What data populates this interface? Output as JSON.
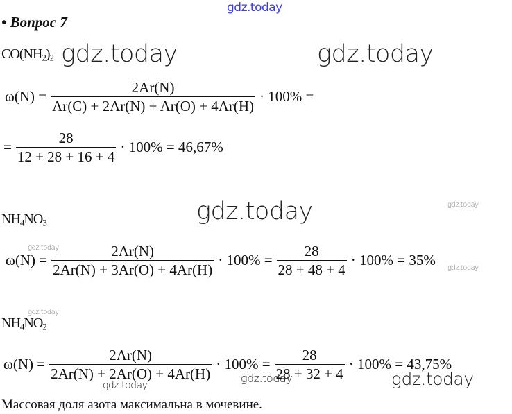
{
  "watermark": "gdz.today",
  "watermark_color": "#3b3bff",
  "heading": "• Вопрос 7",
  "compounds": [
    {
      "base1": "CO(NH",
      "sub1": "2",
      "base2": ")",
      "sub2": "2"
    },
    {
      "base1": "NH",
      "sub1": "4",
      "base2": "NO",
      "sub2": "3"
    },
    {
      "base1": "NH",
      "sub1": "4",
      "base2": "NO",
      "sub2": "2"
    }
  ],
  "formula1": {
    "lhs": "ω(N) =",
    "num": "2Ar(N)",
    "den": "Ar(C) + 2Ar(N) + Ar(O) + 4Ar(H)",
    "tail": "· 100% ="
  },
  "formula1b": {
    "lhs": "=",
    "num": "28",
    "den": "12 + 28 + 16 + 4",
    "tail": "· 100% = 46,67%"
  },
  "formula2": {
    "lhs": "ω(N) =",
    "num": "2Ar(N)",
    "den": "2Ar(N) + 3Ar(O) + 4Ar(H)",
    "mid": "· 100% =",
    "num2": "28",
    "den2": "28 + 48 + 4",
    "tail": "· 100% = 35%"
  },
  "formula3": {
    "lhs": "ω(N) =",
    "num": "2Ar(N)",
    "den": "2Ar(N) + 2Ar(O) + 4Ar(H)",
    "mid": "· 100% =",
    "num2": "28",
    "den2": "28 + 32 + 4",
    "tail": "· 100% = 43,75%"
  },
  "conclusion": "Массовая доля азота максимальна в мочевине."
}
